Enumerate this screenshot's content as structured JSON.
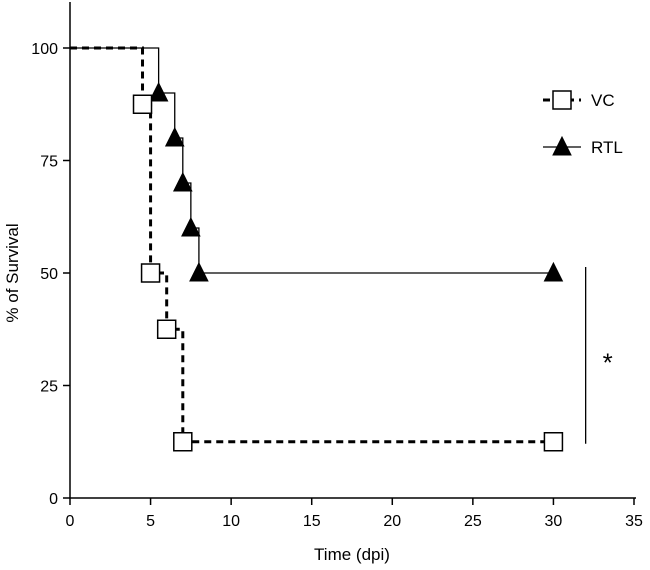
{
  "chart_data": {
    "type": "line",
    "subtype": "kaplan-meier step",
    "xlabel": "Time (dpi)",
    "ylabel": "% of Survival",
    "xlim": [
      0,
      35
    ],
    "ylim": [
      0,
      100
    ],
    "x_ticks": [
      0,
      5,
      10,
      15,
      20,
      25,
      30,
      35
    ],
    "y_ticks": [
      0,
      25,
      50,
      75,
      100
    ],
    "grid": false,
    "legend_position": "top-right",
    "series": [
      {
        "name": "VC",
        "line_style": "dashed",
        "marker": "open-square",
        "x": [
          0,
          4.5,
          5,
          6,
          7,
          30
        ],
        "y": [
          100,
          87.5,
          50,
          37.5,
          12.5,
          12.5
        ]
      },
      {
        "name": "RTL",
        "line_style": "solid",
        "marker": "filled-triangle",
        "x": [
          0,
          5.5,
          6.5,
          7,
          7.5,
          8,
          30
        ],
        "y": [
          100,
          90,
          80,
          70,
          60,
          50,
          50
        ]
      }
    ],
    "annotation": {
      "text": "*",
      "bracket_x": 32,
      "y_range": [
        12.5,
        50
      ]
    }
  },
  "colors": {
    "line": "#000000",
    "marker_fill_open": "#ffffff",
    "marker_fill_solid": "#000000"
  }
}
